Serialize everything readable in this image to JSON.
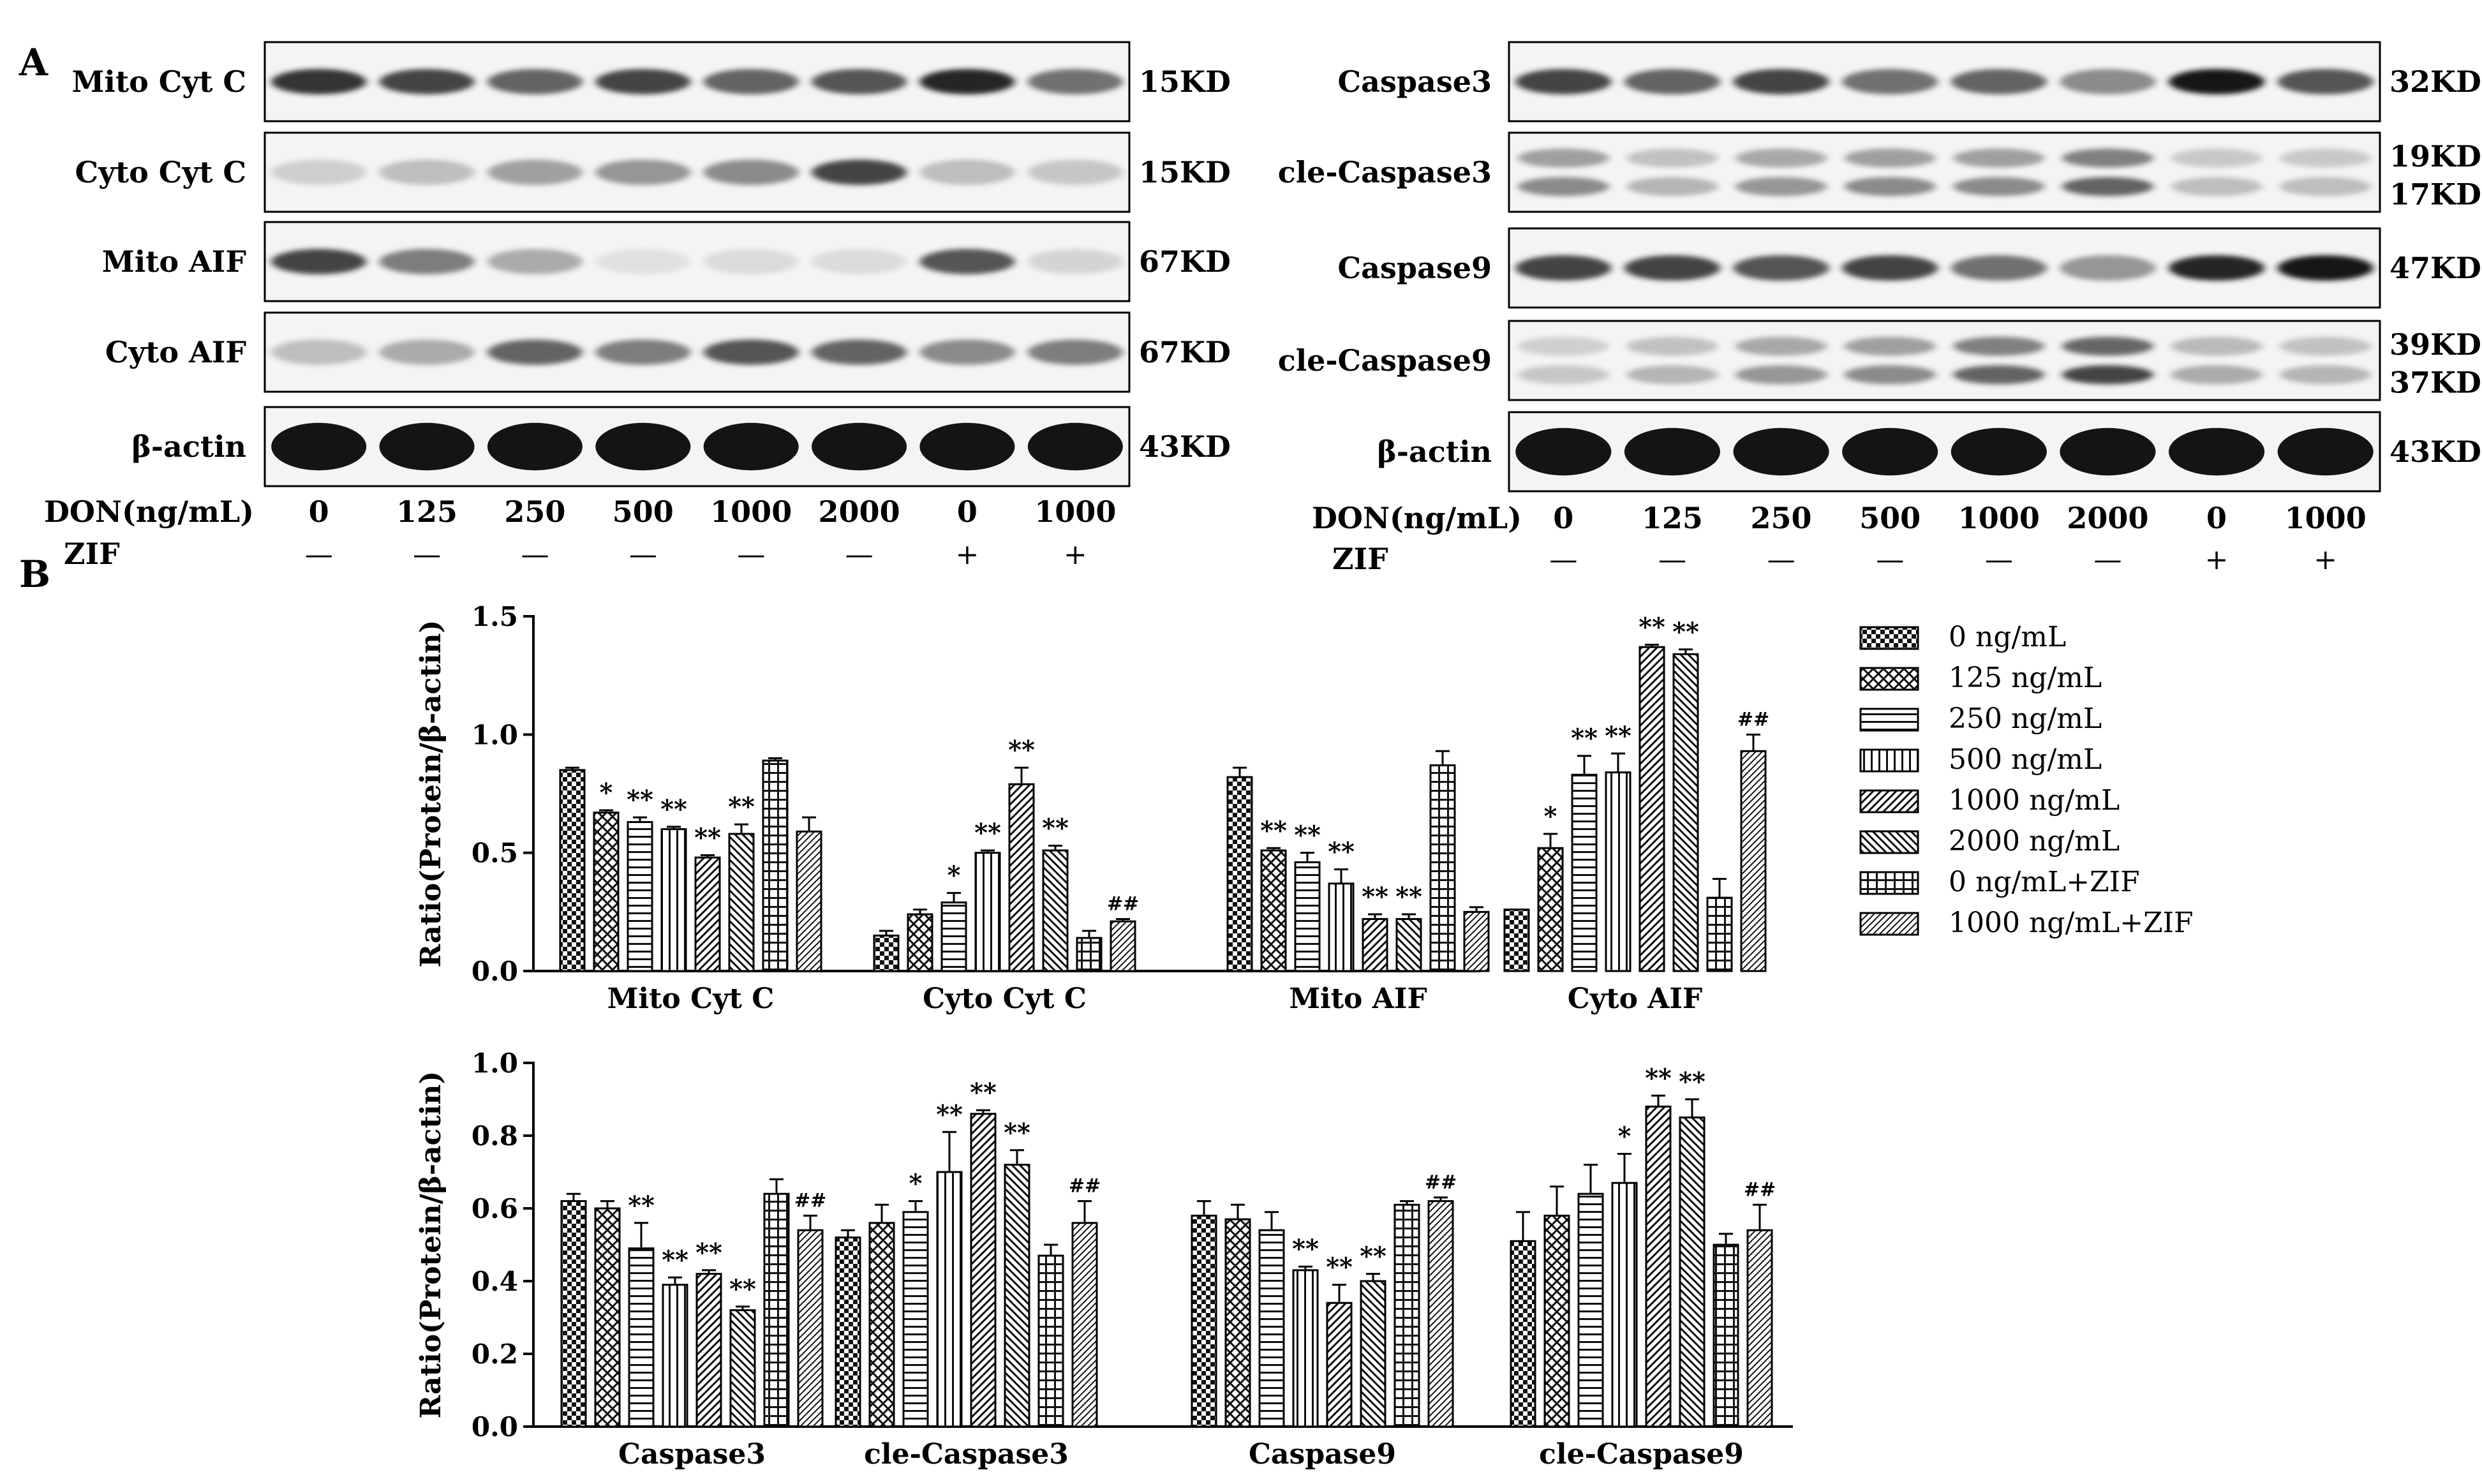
{
  "panel_labels": {
    "a": "A",
    "b": "B"
  },
  "western_blot": {
    "left": {
      "rows": [
        {
          "protein": "Mito Cyt C",
          "sizes": [
            "15KD"
          ],
          "bands": [
            0.9,
            0.85,
            0.75,
            0.85,
            0.75,
            0.8,
            0.95,
            0.7
          ]
        },
        {
          "protein": "Cyto Cyt C",
          "sizes": [
            "15KD"
          ],
          "bands": [
            0.25,
            0.35,
            0.5,
            0.55,
            0.6,
            0.85,
            0.35,
            0.3
          ]
        },
        {
          "protein": "Mito AIF",
          "sizes": [
            "67KD"
          ],
          "bands": [
            0.85,
            0.65,
            0.45,
            0.1,
            0.15,
            0.15,
            0.8,
            0.2
          ]
        },
        {
          "protein": "Cyto AIF",
          "sizes": [
            "67KD"
          ],
          "bands": [
            0.35,
            0.45,
            0.75,
            0.65,
            0.8,
            0.75,
            0.6,
            0.65
          ]
        },
        {
          "protein": "β-actin",
          "sizes": [
            "43KD"
          ],
          "bands": [
            1,
            1,
            1,
            1,
            1,
            1,
            1,
            1
          ]
        }
      ],
      "don_label": "DON(ng/mL)",
      "zif_label": "ZIF",
      "don_values": [
        "0",
        "125",
        "250",
        "500",
        "1000",
        "2000",
        "0",
        "1000"
      ],
      "zif_values": [
        "—",
        "—",
        "—",
        "—",
        "—",
        "—",
        "+",
        "+"
      ]
    },
    "right": {
      "rows": [
        {
          "protein": "Caspase3",
          "sizes": [
            "32KD"
          ],
          "bands": [
            0.85,
            0.75,
            0.85,
            0.7,
            0.75,
            0.6,
            1,
            0.8
          ]
        },
        {
          "protein": "cle-Caspase3",
          "sizes": [
            "19KD",
            "17KD"
          ],
          "bands": [
            0.6,
            0.4,
            0.55,
            0.6,
            0.6,
            0.75,
            0.35,
            0.35
          ]
        },
        {
          "protein": "Caspase9",
          "sizes": [
            "47KD"
          ],
          "bands": [
            0.85,
            0.85,
            0.8,
            0.85,
            0.7,
            0.55,
            0.95,
            1
          ]
        },
        {
          "protein": "cle-Caspase9",
          "sizes": [
            "39KD",
            "37KD"
          ],
          "bands": [
            0.3,
            0.4,
            0.55,
            0.6,
            0.75,
            0.85,
            0.45,
            0.4
          ]
        },
        {
          "protein": "β-actin",
          "sizes": [
            "43KD"
          ],
          "bands": [
            1,
            1,
            1,
            1,
            1,
            1,
            1,
            1
          ]
        }
      ],
      "don_label": "DON(ng/mL)",
      "zif_label": "ZIF",
      "don_values": [
        "0",
        "125",
        "250",
        "500",
        "1000",
        "2000",
        "0",
        "1000"
      ],
      "zif_values": [
        "—",
        "—",
        "—",
        "—",
        "—",
        "—",
        "+",
        "+"
      ]
    }
  },
  "legend": [
    "0 ng/mL",
    "125 ng/mL",
    "250 ng/mL",
    "500 ng/mL",
    "1000 ng/mL",
    "2000 ng/mL",
    "0 ng/mL+ZIF",
    "1000 ng/mL+ZIF"
  ],
  "chart_data": [
    {
      "type": "bar",
      "ylabel": "Ratio(Protein/β-actin)",
      "ylim": [
        0,
        1.5
      ],
      "yticks": [
        "0.0",
        "0.5",
        "1.0",
        "1.5"
      ],
      "categories": [
        "Mito Cyt C",
        "Cyto Cyt C",
        "Mito AIF",
        "Cyto AIF"
      ],
      "groups": [
        {
          "values": [
            0.85,
            0.67,
            0.63,
            0.6,
            0.48,
            0.58,
            0.89,
            0.59
          ],
          "errors": [
            0.01,
            0.01,
            0.02,
            0.01,
            0.01,
            0.04,
            0.01,
            0.06
          ],
          "marks": [
            "",
            "*",
            "**",
            "**",
            "**",
            "**",
            "",
            ""
          ]
        },
        {
          "values": [
            0.15,
            0.24,
            0.29,
            0.5,
            0.79,
            0.51,
            0.14,
            0.21
          ],
          "errors": [
            0.02,
            0.02,
            0.04,
            0.01,
            0.07,
            0.02,
            0.03,
            0.01
          ],
          "marks": [
            "",
            "",
            "*",
            "**",
            "**",
            "**",
            "",
            "##"
          ]
        },
        {
          "values": [
            0.82,
            0.51,
            0.46,
            0.37,
            0.22,
            0.22,
            0.87,
            0.25
          ],
          "errors": [
            0.04,
            0.01,
            0.04,
            0.06,
            0.02,
            0.02,
            0.06,
            0.02
          ],
          "marks": [
            "",
            "**",
            "**",
            "**",
            "**",
            "**",
            "",
            ""
          ]
        },
        {
          "values": [
            0.26,
            0.52,
            0.83,
            0.84,
            1.37,
            1.34,
            0.31,
            0.93
          ],
          "errors": [
            0.0,
            0.06,
            0.08,
            0.08,
            0.01,
            0.02,
            0.08,
            0.07
          ],
          "marks": [
            "",
            "*",
            "**",
            "**",
            "**",
            "**",
            "",
            "##"
          ]
        }
      ]
    },
    {
      "type": "bar",
      "ylabel": "Ratio(Protein/β-actin)",
      "ylim": [
        0,
        1.0
      ],
      "yticks": [
        "0.0",
        "0.2",
        "0.4",
        "0.6",
        "0.8",
        "1.0"
      ],
      "categories": [
        "Caspase3",
        "cle-Caspase3",
        "Caspase9",
        "cle-Caspase9"
      ],
      "groups": [
        {
          "values": [
            0.62,
            0.6,
            0.49,
            0.39,
            0.42,
            0.32,
            0.64,
            0.54
          ],
          "errors": [
            0.02,
            0.02,
            0.07,
            0.02,
            0.01,
            0.01,
            0.04,
            0.04
          ],
          "marks": [
            "",
            "",
            "**",
            "**",
            "**",
            "**",
            "",
            "##"
          ]
        },
        {
          "values": [
            0.52,
            0.56,
            0.59,
            0.7,
            0.86,
            0.72,
            0.47,
            0.56
          ],
          "errors": [
            0.02,
            0.05,
            0.03,
            0.11,
            0.01,
            0.04,
            0.03,
            0.06
          ],
          "marks": [
            "",
            "",
            "*",
            "**",
            "**",
            "**",
            "",
            "##"
          ]
        },
        {
          "values": [
            0.58,
            0.57,
            0.54,
            0.43,
            0.34,
            0.4,
            0.61,
            0.62
          ],
          "errors": [
            0.04,
            0.04,
            0.05,
            0.01,
            0.05,
            0.02,
            0.01,
            0.01
          ],
          "marks": [
            "",
            "",
            "",
            "**",
            "**",
            "**",
            "",
            "##"
          ]
        },
        {
          "values": [
            0.51,
            0.58,
            0.64,
            0.67,
            0.88,
            0.85,
            0.5,
            0.54
          ],
          "errors": [
            0.08,
            0.08,
            0.08,
            0.08,
            0.03,
            0.05,
            0.03,
            0.07
          ],
          "marks": [
            "",
            "",
            "",
            "*",
            "**",
            "**",
            "",
            "##"
          ]
        }
      ]
    }
  ]
}
